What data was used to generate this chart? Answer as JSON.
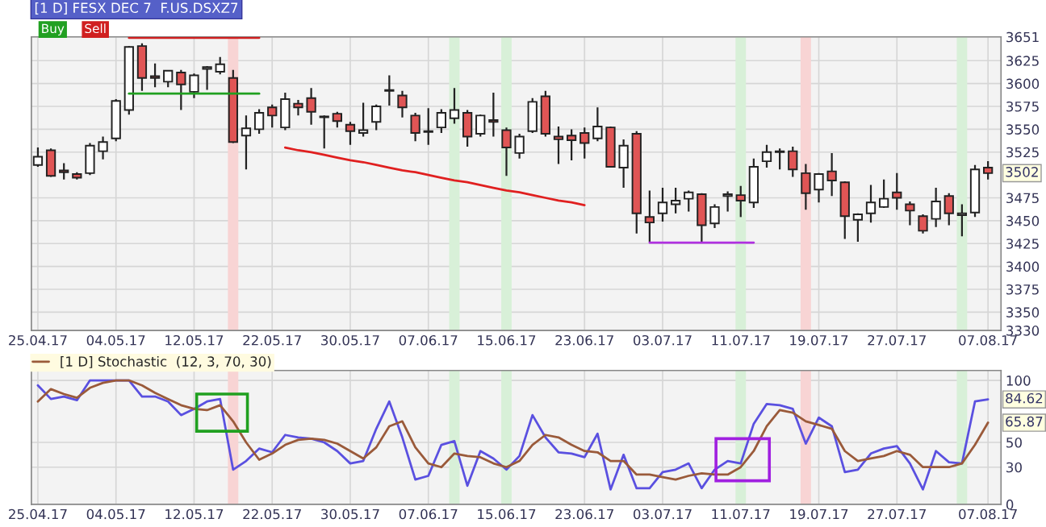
{
  "chart_data": [
    {
      "type": "candlestick",
      "title": "[1 D] FESX DEC 7  F.US.DSXZ7",
      "categories": [
        "25.04.17",
        null,
        null,
        null,
        null,
        null,
        "04.05.17",
        null,
        null,
        null,
        null,
        null,
        "12.05.17",
        null,
        null,
        null,
        null,
        null,
        "22.05.17",
        null,
        null,
        null,
        null,
        null,
        "30.05.17",
        null,
        null,
        null,
        null,
        null,
        "07.06.17",
        null,
        null,
        null,
        null,
        null,
        "15.06.17",
        null,
        null,
        null,
        null,
        null,
        "23.06.17",
        null,
        null,
        null,
        null,
        null,
        "03.07.17",
        null,
        null,
        null,
        null,
        null,
        "11.07.17",
        null,
        null,
        null,
        null,
        null,
        "19.07.17",
        null,
        null,
        null,
        null,
        null,
        "27.07.17",
        null,
        null,
        null,
        null,
        null,
        null,
        "07.08.17"
      ],
      "ohlc": [
        [
          3511,
          3530,
          3509,
          3520
        ],
        [
          3527,
          3529,
          3498,
          3499
        ],
        [
          3505,
          3513,
          3495,
          3503
        ],
        [
          3501,
          3503,
          3495,
          3497
        ],
        [
          3502,
          3535,
          3500,
          3532
        ],
        [
          3526,
          3542,
          3517,
          3536
        ],
        [
          3540,
          3583,
          3537,
          3581
        ],
        [
          3571,
          3641,
          3566,
          3640
        ],
        [
          3641,
          3644,
          3592,
          3606
        ],
        [
          3608,
          3622,
          3596,
          3606
        ],
        [
          3602,
          3614,
          3596,
          3614
        ],
        [
          3612,
          3615,
          3571,
          3599
        ],
        [
          3591,
          3611,
          3584,
          3609
        ],
        [
          3616,
          3619,
          3593,
          3618
        ],
        [
          3613,
          3629,
          3610,
          3621
        ],
        [
          3606,
          3615,
          3535,
          3536
        ],
        [
          3543,
          3565,
          3506,
          3551
        ],
        [
          3550,
          3572,
          3545,
          3568
        ],
        [
          3574,
          3577,
          3552,
          3565
        ],
        [
          3552,
          3590,
          3549,
          3583
        ],
        [
          3578,
          3582,
          3565,
          3574
        ],
        [
          3584,
          3595,
          3555,
          3569
        ],
        [
          3563,
          3565,
          3529,
          3564
        ],
        [
          3567,
          3569,
          3552,
          3559
        ],
        [
          3555,
          3558,
          3533,
          3548
        ],
        [
          3546,
          3579,
          3542,
          3549
        ],
        [
          3558,
          3577,
          3549,
          3575
        ],
        [
          3592,
          3609,
          3576,
          3593
        ],
        [
          3587,
          3592,
          3563,
          3574
        ],
        [
          3565,
          3568,
          3537,
          3546
        ],
        [
          3547,
          3573,
          3533,
          3548
        ],
        [
          3552,
          3572,
          3546,
          3568
        ],
        [
          3562,
          3595,
          3556,
          3571
        ],
        [
          3568,
          3571,
          3531,
          3542
        ],
        [
          3545,
          3566,
          3542,
          3565
        ],
        [
          3560,
          3590,
          3542,
          3558
        ],
        [
          3549,
          3552,
          3499,
          3530
        ],
        [
          3524,
          3545,
          3518,
          3542
        ],
        [
          3548,
          3584,
          3546,
          3580
        ],
        [
          3586,
          3592,
          3542,
          3545
        ],
        [
          3542,
          3553,
          3512,
          3539
        ],
        [
          3543,
          3550,
          3516,
          3538
        ],
        [
          3546,
          3552,
          3518,
          3535
        ],
        [
          3540,
          3574,
          3537,
          3553
        ],
        [
          3552,
          3553,
          3508,
          3509
        ],
        [
          3508,
          3539,
          3486,
          3532
        ],
        [
          3545,
          3548,
          3436,
          3458
        ],
        [
          3454,
          3483,
          3427,
          3448
        ],
        [
          3458,
          3486,
          3449,
          3470
        ],
        [
          3468,
          3486,
          3458,
          3472
        ],
        [
          3474,
          3483,
          3460,
          3481
        ],
        [
          3479,
          3480,
          3427,
          3445
        ],
        [
          3447,
          3468,
          3442,
          3465
        ],
        [
          3477,
          3482,
          3460,
          3479
        ],
        [
          3478,
          3488,
          3454,
          3472
        ],
        [
          3470,
          3518,
          3464,
          3509
        ],
        [
          3515,
          3533,
          3508,
          3525
        ],
        [
          3525,
          3529,
          3506,
          3526
        ],
        [
          3526,
          3531,
          3498,
          3506
        ],
        [
          3502,
          3512,
          3462,
          3480
        ],
        [
          3484,
          3502,
          3470,
          3501
        ],
        [
          3504,
          3524,
          3477,
          3494
        ],
        [
          3492,
          3493,
          3430,
          3455
        ],
        [
          3451,
          3458,
          3427,
          3457
        ],
        [
          3458,
          3489,
          3448,
          3470
        ],
        [
          3465,
          3495,
          3464,
          3474
        ],
        [
          3481,
          3502,
          3462,
          3475
        ],
        [
          3468,
          3471,
          3445,
          3461
        ],
        [
          3455,
          3457,
          3436,
          3439
        ],
        [
          3452,
          3486,
          3443,
          3471
        ],
        [
          3477,
          3480,
          3445,
          3458
        ],
        [
          3456,
          3468,
          3433,
          3458
        ],
        [
          3459,
          3511,
          3454,
          3506
        ],
        [
          3508,
          3515,
          3495,
          3502
        ]
      ],
      "series": [
        {
          "type": "line",
          "color": "#d02020",
          "values": [
            null,
            null,
            null,
            null,
            null,
            null,
            null,
            3650,
            3650,
            3650,
            3650,
            3650,
            3650,
            3650,
            3650,
            3650,
            3650,
            3650,
            null,
            null,
            null,
            null,
            null,
            null,
            null,
            null,
            null,
            null,
            null,
            null,
            null,
            null,
            null,
            null,
            null,
            null,
            null,
            null,
            null,
            null,
            null,
            null,
            null,
            null,
            null,
            null,
            null,
            null,
            null,
            null,
            null,
            null,
            null,
            null,
            null,
            null,
            null,
            null,
            null,
            null,
            null,
            null,
            null,
            null,
            null,
            null,
            null,
            null,
            null,
            null,
            null,
            null,
            null,
            null
          ]
        },
        {
          "type": "line",
          "color": "#20a020",
          "values": [
            null,
            null,
            null,
            null,
            null,
            null,
            null,
            3589,
            3589,
            3589,
            3589,
            3589,
            3589,
            3589,
            3589,
            3589,
            3589,
            3589,
            null,
            null,
            null,
            null,
            null,
            null,
            null,
            null,
            null,
            null,
            null,
            null,
            null,
            null,
            null,
            null,
            null,
            null,
            null,
            null,
            null,
            null,
            null,
            null,
            null,
            null,
            null,
            null,
            null,
            null,
            null,
            null,
            null,
            null,
            null,
            null,
            null,
            null,
            null,
            null,
            null,
            null,
            null,
            null,
            null,
            null,
            null,
            null,
            null,
            null,
            null,
            null,
            null,
            null,
            null,
            null
          ]
        },
        {
          "type": "line",
          "color": "#e02020",
          "values": [
            null,
            null,
            null,
            null,
            null,
            null,
            null,
            null,
            null,
            null,
            null,
            null,
            null,
            null,
            null,
            null,
            null,
            null,
            null,
            3530,
            3527,
            3525,
            3522,
            3519,
            3516,
            3514,
            3511,
            3508,
            3505,
            3503,
            3500,
            3497,
            3494,
            3492,
            3489,
            3486,
            3483,
            3481,
            3478,
            3475,
            3472,
            3470,
            3467,
            null,
            null,
            null,
            null,
            null,
            null,
            null,
            null,
            null,
            null,
            null,
            null,
            null,
            null,
            null,
            null,
            null,
            null,
            null,
            null,
            null,
            null,
            null,
            null,
            null,
            null,
            null,
            null,
            null,
            null,
            null
          ]
        },
        {
          "type": "line",
          "color": "#b030e0",
          "values": [
            null,
            null,
            null,
            null,
            null,
            null,
            null,
            null,
            null,
            null,
            null,
            null,
            null,
            null,
            null,
            null,
            null,
            null,
            null,
            null,
            null,
            null,
            null,
            null,
            null,
            null,
            null,
            null,
            null,
            null,
            null,
            null,
            null,
            null,
            null,
            null,
            null,
            null,
            null,
            null,
            null,
            null,
            null,
            null,
            null,
            null,
            null,
            3426,
            3426,
            3426,
            3426,
            3426,
            3426,
            3426,
            3426,
            3426,
            null,
            null,
            null,
            null,
            null,
            null,
            null,
            null,
            null,
            null,
            null,
            null,
            null,
            null,
            null,
            null,
            null,
            null
          ]
        }
      ],
      "ylim": [
        3330,
        3651
      ],
      "yticks": [
        3330,
        3350,
        3375,
        3400,
        3425,
        3450,
        3475,
        3525,
        3550,
        3575,
        3600,
        3625,
        3651
      ],
      "grid": true,
      "annotations": [
        "Buy",
        "Sell",
        {
          "text": "3502",
          "x": "07.08.17",
          "y": 3502
        }
      ]
    },
    {
      "type": "line",
      "categories": [
        "25.04.17",
        null,
        null,
        null,
        null,
        null,
        "04.05.17",
        null,
        null,
        null,
        null,
        null,
        "12.05.17",
        null,
        null,
        null,
        null,
        null,
        "22.05.17",
        null,
        null,
        null,
        null,
        null,
        "30.05.17",
        null,
        null,
        null,
        null,
        null,
        "07.06.17",
        null,
        null,
        null,
        null,
        null,
        "15.06.17",
        null,
        null,
        null,
        null,
        null,
        "23.06.17",
        null,
        null,
        null,
        null,
        null,
        "03.07.17",
        null,
        null,
        null,
        null,
        null,
        "11.07.17",
        null,
        null,
        null,
        null,
        null,
        "19.07.17",
        null,
        null,
        null,
        null,
        null,
        "27.07.17",
        null,
        null,
        null,
        null,
        null,
        null,
        "07.08.17"
      ],
      "series": [
        {
          "color": "#5a50e0",
          "values": [
            96,
            85,
            87,
            84,
            100,
            100,
            100,
            100,
            87,
            87,
            83,
            72,
            77,
            83,
            85,
            28,
            35,
            45,
            42,
            56,
            54,
            53,
            50,
            43,
            33,
            35,
            61,
            83,
            54,
            20,
            23,
            48,
            51,
            15,
            43,
            37,
            28,
            39,
            72,
            54,
            42,
            41,
            38,
            57,
            12,
            40,
            13,
            13,
            26,
            28,
            33,
            13,
            28,
            35,
            33,
            65,
            81,
            80,
            77,
            49,
            70,
            63,
            26,
            28,
            41,
            45,
            47,
            33,
            12,
            43,
            34,
            33,
            83,
            84.62
          ]
        },
        {
          "name": "[1 D] Stochastic  (12, 3, 70, 30)",
          "color": "#9a5a3a",
          "values": [
            83,
            93,
            89,
            86,
            94,
            98,
            100,
            100,
            96,
            90,
            85,
            80,
            77,
            76,
            80,
            67,
            50,
            36,
            41,
            48,
            52,
            53,
            52,
            49,
            43,
            37,
            46,
            63,
            67,
            46,
            33,
            30,
            41,
            39,
            38,
            33,
            30,
            35,
            48,
            56,
            54,
            48,
            43,
            42,
            35,
            35,
            24,
            24,
            22,
            20,
            23,
            25,
            24,
            24,
            30,
            43,
            63,
            76,
            74,
            67,
            64,
            61,
            43,
            35,
            37,
            39,
            43,
            40,
            30,
            30,
            30,
            33,
            48,
            65.87
          ]
        }
      ],
      "ylim": [
        0,
        108
      ],
      "yticks": [
        0,
        30,
        50,
        100
      ],
      "grid": true,
      "legend": "top left",
      "annotations": [
        {
          "text": "84.62",
          "x": "07.08.17",
          "y": 84.62
        },
        {
          "text": "65.87",
          "x": "07.08.17",
          "y": 65.87
        }
      ]
    }
  ]
}
